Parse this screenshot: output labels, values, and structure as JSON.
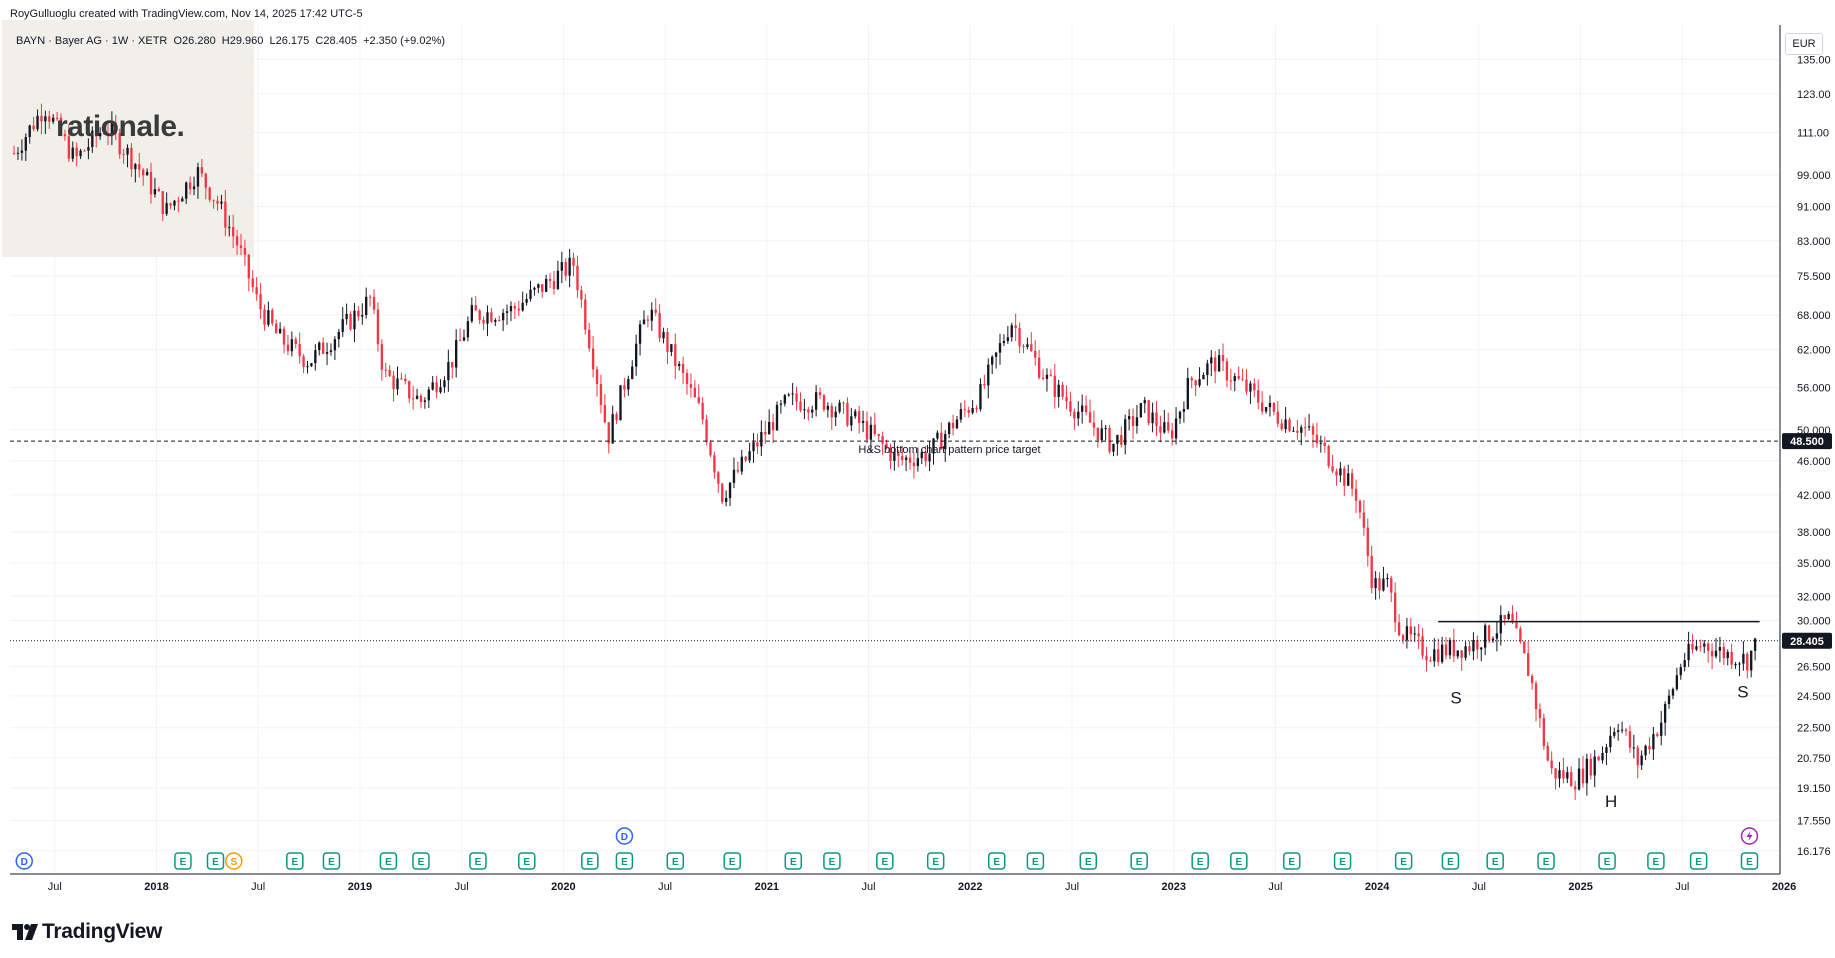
{
  "header": {
    "credit": "RoyGulluoglu created with TradingView.com, Nov 14, 2025 17:42 UTC-5",
    "legend": "BAYN · Bayer AG · 1W · XETR  O26.280  H29.960  L26.175  C28.405  +2.350 (+9.02%)"
  },
  "logo_text": "rationale.",
  "branding": "TradingView",
  "currency": "EUR",
  "chart_data": {
    "type": "candlestick",
    "title": "BAYN · Bayer AG · 1W · XETR",
    "ohlc": {
      "open": 26.28,
      "high": 29.96,
      "low": 26.175,
      "close": 28.405,
      "change": 2.35,
      "change_pct": 9.02
    },
    "y_scale": "log",
    "ylim": [
      15.2,
      148
    ],
    "y_ticks": [
      16.176,
      17.55,
      19.15,
      20.75,
      22.5,
      24.5,
      26.5,
      28.405,
      30.0,
      32.0,
      35.0,
      38.0,
      42.0,
      46.0,
      48.5,
      50.0,
      56.0,
      62.0,
      68.0,
      75.5,
      83.0,
      91.0,
      99.0,
      111.0,
      123.0,
      135.0
    ],
    "y_tick_labels": [
      "16.176",
      "17.550",
      "19.150",
      "20.750",
      "22.500",
      "24.500",
      "26.500",
      "28.405",
      "30.000",
      "32.000",
      "35.000",
      "38.000",
      "42.000",
      "46.000",
      "48.500",
      "50.000",
      "56.000",
      "62.000",
      "68.000",
      "75.500",
      "83.000",
      "91.000",
      "99.000",
      "111.00",
      "123.00",
      "135.00"
    ],
    "xlim": [
      2017.28,
      2025.98
    ],
    "x_ticks": [
      2017.5,
      2018.0,
      2018.5,
      2019.0,
      2019.5,
      2020.0,
      2020.5,
      2021.0,
      2021.5,
      2022.0,
      2022.5,
      2023.0,
      2023.5,
      2024.0,
      2024.5,
      2025.0,
      2025.5,
      2026.0
    ],
    "x_tick_labels": [
      "Jul",
      "2018",
      "Jul",
      "2019",
      "Jul",
      "2020",
      "Jul",
      "2021",
      "Jul",
      "2022",
      "Jul",
      "2023",
      "Jul",
      "2024",
      "Jul",
      "2025",
      "Jul",
      "2026"
    ],
    "x_tick_bold": [
      false,
      true,
      false,
      true,
      false,
      true,
      false,
      true,
      false,
      true,
      false,
      true,
      false,
      true,
      false,
      true,
      false,
      true
    ],
    "price_anchors": [
      [
        2017.3,
        105
      ],
      [
        2017.45,
        119
      ],
      [
        2017.6,
        103
      ],
      [
        2017.75,
        113
      ],
      [
        2017.9,
        102
      ],
      [
        2018.05,
        90
      ],
      [
        2018.2,
        100
      ],
      [
        2018.3,
        92
      ],
      [
        2018.4,
        82
      ],
      [
        2018.5,
        70
      ],
      [
        2018.6,
        64
      ],
      [
        2018.75,
        60
      ],
      [
        2018.95,
        67
      ],
      [
        2019.05,
        71
      ],
      [
        2019.12,
        58
      ],
      [
        2019.3,
        54
      ],
      [
        2019.45,
        60
      ],
      [
        2019.55,
        68
      ],
      [
        2019.75,
        69
      ],
      [
        2019.95,
        75
      ],
      [
        2020.05,
        78
      ],
      [
        2020.15,
        60
      ],
      [
        2020.22,
        49
      ],
      [
        2020.35,
        62
      ],
      [
        2020.42,
        69
      ],
      [
        2020.55,
        60
      ],
      [
        2020.68,
        52
      ],
      [
        2020.78,
        42
      ],
      [
        2020.92,
        47
      ],
      [
        2021.1,
        54
      ],
      [
        2021.28,
        54
      ],
      [
        2021.45,
        51
      ],
      [
        2021.65,
        46
      ],
      [
        2021.8,
        47
      ],
      [
        2021.92,
        51
      ],
      [
        2022.05,
        55
      ],
      [
        2022.2,
        67
      ],
      [
        2022.38,
        57
      ],
      [
        2022.55,
        52
      ],
      [
        2022.7,
        48
      ],
      [
        2022.85,
        53
      ],
      [
        2022.98,
        49
      ],
      [
        2023.08,
        57
      ],
      [
        2023.2,
        60
      ],
      [
        2023.35,
        56
      ],
      [
        2023.5,
        52
      ],
      [
        2023.65,
        50
      ],
      [
        2023.78,
        46
      ],
      [
        2023.9,
        42
      ],
      [
        2023.98,
        33
      ],
      [
        2024.05,
        33
      ],
      [
        2024.12,
        29
      ],
      [
        2024.25,
        27.5
      ],
      [
        2024.45,
        28
      ],
      [
        2024.65,
        30
      ],
      [
        2024.75,
        26
      ],
      [
        2024.85,
        20
      ],
      [
        2024.98,
        19.6
      ],
      [
        2025.1,
        21
      ],
      [
        2025.18,
        23
      ],
      [
        2025.28,
        20.5
      ],
      [
        2025.4,
        23
      ],
      [
        2025.5,
        27
      ],
      [
        2025.6,
        28.2
      ],
      [
        2025.7,
        27.5
      ],
      [
        2025.82,
        27
      ],
      [
        2025.87,
        28.4
      ]
    ],
    "seed": 7,
    "annotations": [
      {
        "text": "H&S bottom chart pattern price target",
        "x": 2021.45,
        "y": 47.0
      },
      {
        "text": "S",
        "x": 2024.36,
        "y": 24.0
      },
      {
        "text": "H",
        "x": 2025.12,
        "y": 18.2
      },
      {
        "text": "S",
        "x": 2025.77,
        "y": 24.4
      }
    ],
    "target_line": {
      "value": 48.5,
      "label": "48.500"
    },
    "neckline": {
      "value": 29.9,
      "x_start": 2024.3,
      "x_end": 2025.88
    },
    "last_price": {
      "value": 28.405,
      "label": "28.405"
    },
    "events": [
      {
        "type": "D",
        "x": 2017.35
      },
      {
        "type": "E",
        "x": 2018.13
      },
      {
        "type": "E",
        "x": 2018.29
      },
      {
        "type": "S",
        "x": 2018.38
      },
      {
        "type": "E",
        "x": 2018.68
      },
      {
        "type": "E",
        "x": 2018.86
      },
      {
        "type": "E",
        "x": 2019.14
      },
      {
        "type": "E",
        "x": 2019.3
      },
      {
        "type": "E",
        "x": 2019.58
      },
      {
        "type": "E",
        "x": 2019.82
      },
      {
        "type": "E",
        "x": 2020.13
      },
      {
        "type": "E",
        "x": 2020.3
      },
      {
        "type": "D",
        "x": 2020.3,
        "row": 1
      },
      {
        "type": "E",
        "x": 2020.55
      },
      {
        "type": "E",
        "x": 2020.83
      },
      {
        "type": "E",
        "x": 2021.13
      },
      {
        "type": "E",
        "x": 2021.32
      },
      {
        "type": "E",
        "x": 2021.58
      },
      {
        "type": "E",
        "x": 2021.83
      },
      {
        "type": "E",
        "x": 2022.13
      },
      {
        "type": "E",
        "x": 2022.32
      },
      {
        "type": "E",
        "x": 2022.58
      },
      {
        "type": "E",
        "x": 2022.83
      },
      {
        "type": "E",
        "x": 2023.13
      },
      {
        "type": "E",
        "x": 2023.32
      },
      {
        "type": "E",
        "x": 2023.58
      },
      {
        "type": "E",
        "x": 2023.83
      },
      {
        "type": "E",
        "x": 2024.13
      },
      {
        "type": "E",
        "x": 2024.36
      },
      {
        "type": "E",
        "x": 2024.58
      },
      {
        "type": "E",
        "x": 2024.83
      },
      {
        "type": "E",
        "x": 2025.13
      },
      {
        "type": "E",
        "x": 2025.37
      },
      {
        "type": "E",
        "x": 2025.58
      },
      {
        "type": "E",
        "x": 2025.83
      },
      {
        "type": "alert",
        "x": 2025.83,
        "row": 1
      }
    ],
    "colors": {
      "up": "#131722",
      "down": "#f23645",
      "grid": "#f0f3fa",
      "axis": "#131722",
      "event_green": "#089981",
      "event_red": "#f23645",
      "event_blue": "#2962ff",
      "event_orange": "#ff9800",
      "alert": "#9c27b0"
    }
  }
}
